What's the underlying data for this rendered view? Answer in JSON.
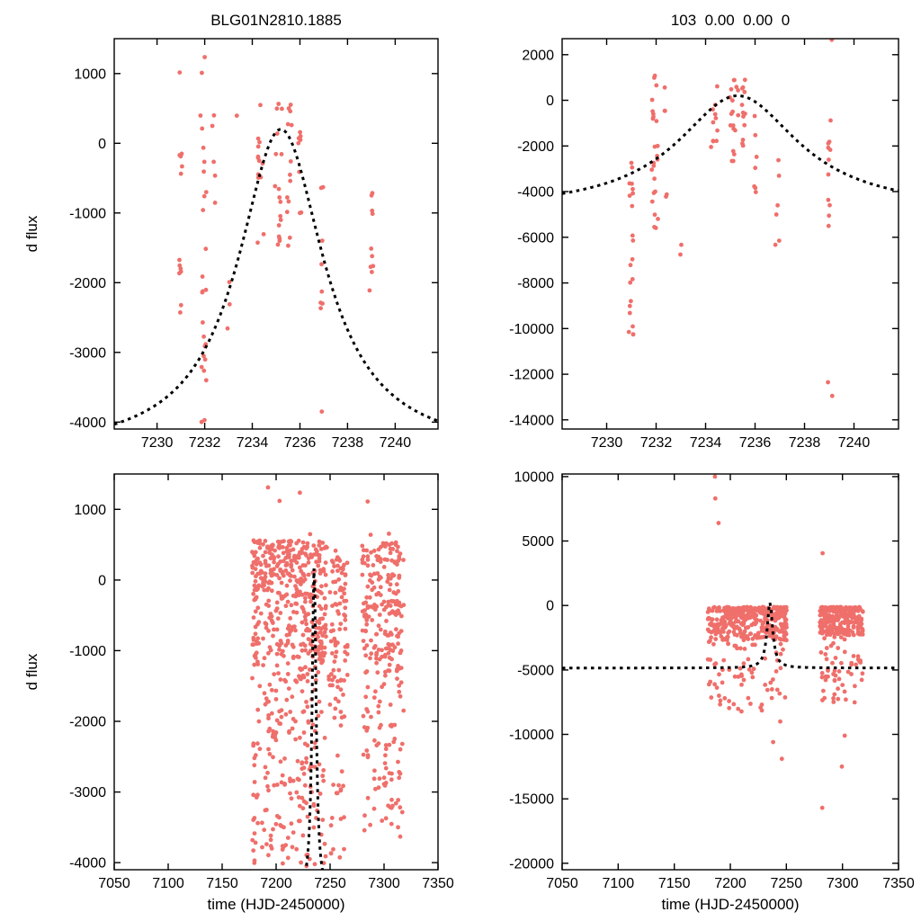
{
  "figure": {
    "background": "#ffffff",
    "point_color": "#ef6f6b",
    "curve_color": "#000000",
    "axis_color": "#000000"
  },
  "chart_data": {
    "type": "scatter",
    "grid": false,
    "legend": null,
    "panels": [
      {
        "id": "top-left",
        "title": "BLG01N2810.1885",
        "xlabel": "",
        "ylabel": "d flux",
        "xlim": [
          7228.2,
          7241.8
        ],
        "ylim": [
          -4100,
          1500
        ],
        "xticks": [
          7230,
          7232,
          7234,
          7236,
          7238,
          7240
        ],
        "yticks": [
          1000,
          0,
          -1000,
          -2000,
          -3000,
          -4000
        ],
        "model_curve": {
          "shape": "lorentzian",
          "x0": 7235.2,
          "peak": 200,
          "baseline": -4450,
          "width": 2.2
        },
        "clusters": [
          {
            "x": 7231.0,
            "dx": 0.08,
            "n": 5,
            "ymin": -550,
            "ymax": -120
          },
          {
            "x": 7231.0,
            "dx": 0.08,
            "n": 7,
            "ymin": -2750,
            "ymax": -1650
          },
          {
            "x": 7231.95,
            "dx": 0.13,
            "n": 24,
            "ymin": -4050,
            "ymax": 620
          },
          {
            "x": 7232.4,
            "dx": 0.08,
            "n": 5,
            "ymin": -1600,
            "ymax": 600
          },
          {
            "x": 7233.0,
            "dx": 0.06,
            "n": 3,
            "ymin": -2700,
            "ymax": -1850
          },
          {
            "x": 7234.35,
            "dx": 0.13,
            "n": 13,
            "ymin": -1750,
            "ymax": 620
          },
          {
            "x": 7235.1,
            "dx": 0.15,
            "n": 17,
            "ymin": -1600,
            "ymax": 640
          },
          {
            "x": 7235.55,
            "dx": 0.1,
            "n": 13,
            "ymin": -1500,
            "ymax": 620
          },
          {
            "x": 7236.0,
            "dx": 0.07,
            "n": 8,
            "ymin": -1500,
            "ymax": 230
          },
          {
            "x": 7236.9,
            "dx": 0.08,
            "n": 8,
            "ymin": -2600,
            "ymax": -350
          },
          {
            "x": 7239.0,
            "dx": 0.09,
            "n": 10,
            "ymin": -2300,
            "ymax": -380
          }
        ],
        "outliers": [
          [
            7230.95,
            1015
          ],
          [
            7232.0,
            1235
          ],
          [
            7231.88,
            1010
          ],
          [
            7236.92,
            -3850
          ],
          [
            7233.35,
            395
          ]
        ]
      },
      {
        "id": "top-right",
        "title": "103  0.00  0.00  0",
        "xlabel": "",
        "ylabel": "",
        "xlim": [
          7228.2,
          7241.8
        ],
        "ylim": [
          -14400,
          2700
        ],
        "xticks": [
          7230,
          7232,
          7234,
          7236,
          7238,
          7240
        ],
        "yticks": [
          2000,
          0,
          -2000,
          -4000,
          -6000,
          -8000,
          -10000,
          -12000,
          -14000
        ],
        "model_curve": {
          "shape": "lorentzian",
          "x0": 7235.3,
          "peak": 200,
          "baseline": -4850,
          "width": 3.0
        },
        "clusters": [
          {
            "x": 7231.0,
            "dx": 0.08,
            "n": 8,
            "ymin": -5200,
            "ymax": -2400
          },
          {
            "x": 7231.0,
            "dx": 0.08,
            "n": 12,
            "ymin": -10300,
            "ymax": -5600
          },
          {
            "x": 7231.95,
            "dx": 0.13,
            "n": 24,
            "ymin": -5700,
            "ymax": 1150
          },
          {
            "x": 7232.35,
            "dx": 0.08,
            "n": 5,
            "ymin": -4300,
            "ymax": 600
          },
          {
            "x": 7233.0,
            "dx": 0.06,
            "n": 2,
            "ymin": -7000,
            "ymax": -6300
          },
          {
            "x": 7234.35,
            "dx": 0.13,
            "n": 12,
            "ymin": -2200,
            "ymax": 900
          },
          {
            "x": 7235.15,
            "dx": 0.18,
            "n": 18,
            "ymin": -2700,
            "ymax": 950
          },
          {
            "x": 7235.55,
            "dx": 0.1,
            "n": 12,
            "ymin": -2300,
            "ymax": 900
          },
          {
            "x": 7236.0,
            "dx": 0.07,
            "n": 7,
            "ymin": -4200,
            "ymax": -600
          },
          {
            "x": 7236.9,
            "dx": 0.08,
            "n": 6,
            "ymin": -6900,
            "ymax": -1900
          },
          {
            "x": 7239.0,
            "dx": 0.09,
            "n": 11,
            "ymin": -5800,
            "ymax": -700
          }
        ],
        "outliers": [
          [
            7239.1,
            2650
          ],
          [
            7238.95,
            -12350
          ],
          [
            7239.12,
            -12950
          ],
          [
            7230.9,
            -10150
          ]
        ]
      },
      {
        "id": "bottom-left",
        "title": "",
        "xlabel": "time (HJD-2450000)",
        "ylabel": "d flux",
        "xlim": [
          7050,
          7350
        ],
        "ylim": [
          -4100,
          1500
        ],
        "xticks": [
          7050,
          7100,
          7150,
          7200,
          7250,
          7300,
          7350
        ],
        "yticks": [
          1000,
          0,
          -1000,
          -2000,
          -3000,
          -4000
        ],
        "model_curve": {
          "shape": "lorentzian",
          "x0": 7235.2,
          "peak": 200,
          "baseline": -4450,
          "width": 2.2
        },
        "clusters": [
          {
            "x0": 7178,
            "x1": 7246,
            "period": 1,
            "dx": 0.16,
            "n": 400,
            "ymin": -1100,
            "ymax": 560,
            "bias": 1.2
          },
          {
            "x0": 7178,
            "x1": 7246,
            "period": 1,
            "dx": 0.16,
            "n": 220,
            "ymin": -4060,
            "ymax": -1100
          },
          {
            "x0": 7249,
            "x1": 7266,
            "period": 1,
            "dx": 0.16,
            "n": 80,
            "ymin": -1500,
            "ymax": 420
          },
          {
            "x0": 7249,
            "x1": 7266,
            "period": 1,
            "dx": 0.16,
            "n": 30,
            "ymin": -3950,
            "ymax": -1500
          },
          {
            "x0": 7280,
            "x1": 7318,
            "period": 1,
            "dx": 0.16,
            "n": 190,
            "ymin": -1400,
            "ymax": 520,
            "bias": 1.15
          },
          {
            "x0": 7280,
            "x1": 7318,
            "period": 1,
            "dx": 0.16,
            "n": 80,
            "ymin": -3650,
            "ymax": -1400
          }
        ],
        "outliers": [
          [
            7192.5,
            1310
          ],
          [
            7203.2,
            1120
          ],
          [
            7222.0,
            1235
          ],
          [
            7284.8,
            1110
          ],
          [
            7287.6,
            640
          ],
          [
            7304.5,
            655
          ],
          [
            7311.0,
            530
          ],
          [
            7231.5,
            648
          ],
          [
            7247.0,
            460
          ]
        ]
      },
      {
        "id": "bottom-right",
        "title": "",
        "xlabel": "time (HJD-2450000)",
        "ylabel": "",
        "xlim": [
          7050,
          7350
        ],
        "ylim": [
          -20500,
          10200
        ],
        "xticks": [
          7050,
          7100,
          7150,
          7200,
          7250,
          7300,
          7350
        ],
        "yticks": [
          10000,
          5000,
          0,
          -5000,
          -10000,
          -15000,
          -20000
        ],
        "model_curve": {
          "shape": "lorentzian",
          "x0": 7235.3,
          "peak": 200,
          "baseline": -4850,
          "width": 3.0
        },
        "clusters": [
          {
            "x0": 7180,
            "x1": 7250,
            "period": 1,
            "dx": 0.16,
            "n": 360,
            "ymin": -2700,
            "ymax": -120,
            "bias": 1.4
          },
          {
            "x0": 7180,
            "x1": 7250,
            "period": 1,
            "dx": 0.16,
            "n": 70,
            "ymin": -8300,
            "ymax": -2700
          },
          {
            "x0": 7280,
            "x1": 7318,
            "period": 1,
            "dx": 0.16,
            "n": 240,
            "ymin": -2300,
            "ymax": -120,
            "bias": 1.4
          },
          {
            "x0": 7280,
            "x1": 7318,
            "period": 1,
            "dx": 0.16,
            "n": 55,
            "ymin": -7600,
            "ymax": -2300
          }
        ],
        "outliers": [
          [
            7186.3,
            10000
          ],
          [
            7186.6,
            8300
          ],
          [
            7189.5,
            6400
          ],
          [
            7282.3,
            4050
          ],
          [
            7238.2,
            -10600
          ],
          [
            7246.0,
            -11900
          ],
          [
            7282.0,
            -15700
          ],
          [
            7299.5,
            -12500
          ],
          [
            7302.0,
            -10100
          ],
          [
            7244.5,
            -9000
          ]
        ]
      }
    ]
  }
}
